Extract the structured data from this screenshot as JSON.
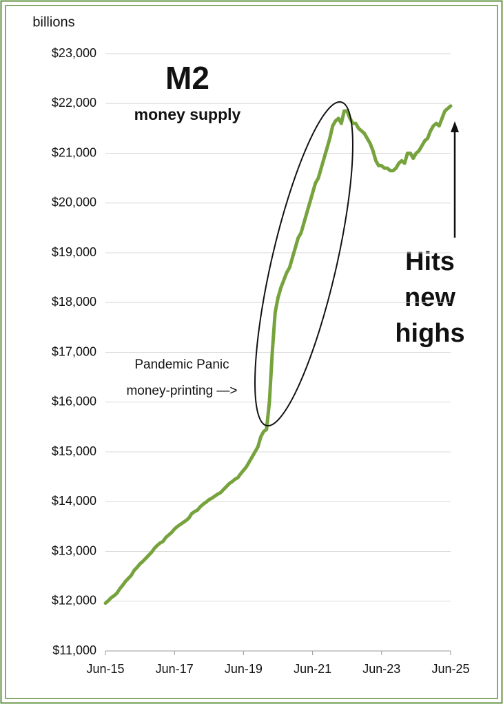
{
  "chart_data": {
    "type": "line",
    "title": "M2",
    "subtitle": "money supply",
    "y_axis_label": "billions",
    "annotations": [
      "Pandemic Panic",
      "money-printing —>",
      "Hits",
      "new",
      "highs"
    ],
    "x": [
      "2015-06",
      "2015-07",
      "2015-08",
      "2015-09",
      "2015-10",
      "2015-11",
      "2015-12",
      "2016-01",
      "2016-02",
      "2016-03",
      "2016-04",
      "2016-05",
      "2016-06",
      "2016-07",
      "2016-08",
      "2016-09",
      "2016-10",
      "2016-11",
      "2016-12",
      "2017-01",
      "2017-02",
      "2017-03",
      "2017-04",
      "2017-05",
      "2017-06",
      "2017-07",
      "2017-08",
      "2017-09",
      "2017-10",
      "2017-11",
      "2017-12",
      "2018-01",
      "2018-02",
      "2018-03",
      "2018-04",
      "2018-05",
      "2018-06",
      "2018-07",
      "2018-08",
      "2018-09",
      "2018-10",
      "2018-11",
      "2018-12",
      "2019-01",
      "2019-02",
      "2019-03",
      "2019-04",
      "2019-05",
      "2019-06",
      "2019-07",
      "2019-08",
      "2019-09",
      "2019-10",
      "2019-11",
      "2019-12",
      "2020-01",
      "2020-02",
      "2020-03",
      "2020-04",
      "2020-05",
      "2020-06",
      "2020-07",
      "2020-08",
      "2020-09",
      "2020-10",
      "2020-11",
      "2020-12",
      "2021-01",
      "2021-02",
      "2021-03",
      "2021-04",
      "2021-05",
      "2021-06",
      "2021-07",
      "2021-08",
      "2021-09",
      "2021-10",
      "2021-11",
      "2021-12",
      "2022-01",
      "2022-02",
      "2022-03",
      "2022-04",
      "2022-05",
      "2022-06",
      "2022-07",
      "2022-08",
      "2022-09",
      "2022-10",
      "2022-11",
      "2022-12",
      "2023-01",
      "2023-02",
      "2023-03",
      "2023-04",
      "2023-05",
      "2023-06",
      "2023-07",
      "2023-08",
      "2023-09",
      "2023-10",
      "2023-11",
      "2023-12",
      "2024-01",
      "2024-02",
      "2024-03",
      "2024-04",
      "2024-05",
      "2024-06",
      "2024-07",
      "2024-08",
      "2024-09",
      "2024-10",
      "2024-11",
      "2024-12",
      "2025-01",
      "2025-02",
      "2025-03",
      "2025-04",
      "2025-05",
      "2025-06"
    ],
    "series": [
      {
        "color": "#77a33e",
        "values": [
          11960,
          12010,
          12070,
          12110,
          12160,
          12250,
          12320,
          12400,
          12460,
          12520,
          12620,
          12680,
          12750,
          12800,
          12860,
          12920,
          12980,
          13060,
          13120,
          13170,
          13200,
          13280,
          13330,
          13380,
          13450,
          13500,
          13540,
          13580,
          13620,
          13670,
          13760,
          13800,
          13830,
          13900,
          13950,
          13990,
          14040,
          14070,
          14110,
          14150,
          14180,
          14240,
          14300,
          14360,
          14400,
          14450,
          14480,
          14560,
          14630,
          14700,
          14800,
          14900,
          15000,
          15100,
          15300,
          15410,
          15450,
          16000,
          17000,
          17800,
          18100,
          18300,
          18450,
          18600,
          18700,
          18900,
          19100,
          19300,
          19400,
          19600,
          19800,
          20000,
          20200,
          20400,
          20500,
          20700,
          20900,
          21100,
          21300,
          21550,
          21650,
          21700,
          21600,
          21850,
          21850,
          21700,
          21600,
          21600,
          21500,
          21450,
          21400,
          21300,
          21200,
          21050,
          20850,
          20750,
          20750,
          20700,
          20700,
          20650,
          20650,
          20700,
          20800,
          20850,
          20800,
          21000,
          21000,
          20900,
          21000,
          21050,
          21150,
          21250,
          21300,
          21450,
          21550,
          21600,
          21550,
          21700,
          21850,
          21900,
          21950
        ]
      }
    ],
    "xlim": [
      "2015-06",
      "2025-06"
    ],
    "xticks": [
      {
        "value": "2015-06",
        "label": "Jun-15"
      },
      {
        "value": "2017-06",
        "label": "Jun-17"
      },
      {
        "value": "2019-06",
        "label": "Jun-19"
      },
      {
        "value": "2021-06",
        "label": "Jun-21"
      },
      {
        "value": "2023-06",
        "label": "Jun-23"
      },
      {
        "value": "2025-06",
        "label": "Jun-25"
      }
    ],
    "ylim": [
      11000,
      23000
    ],
    "yticks": [
      {
        "value": 11000,
        "label": "$11,000"
      },
      {
        "value": 12000,
        "label": "$12,000"
      },
      {
        "value": 13000,
        "label": "$13,000"
      },
      {
        "value": 14000,
        "label": "$14,000"
      },
      {
        "value": 15000,
        "label": "$15,000"
      },
      {
        "value": 16000,
        "label": "$16,000"
      },
      {
        "value": 17000,
        "label": "$17,000"
      },
      {
        "value": 18000,
        "label": "$18,000"
      },
      {
        "value": 19000,
        "label": "$19,000"
      },
      {
        "value": 20000,
        "label": "$20,000"
      },
      {
        "value": 21000,
        "label": "$21,000"
      },
      {
        "value": 22000,
        "label": "$22,000"
      },
      {
        "value": 23000,
        "label": "$23,000"
      }
    ],
    "grid": true
  }
}
